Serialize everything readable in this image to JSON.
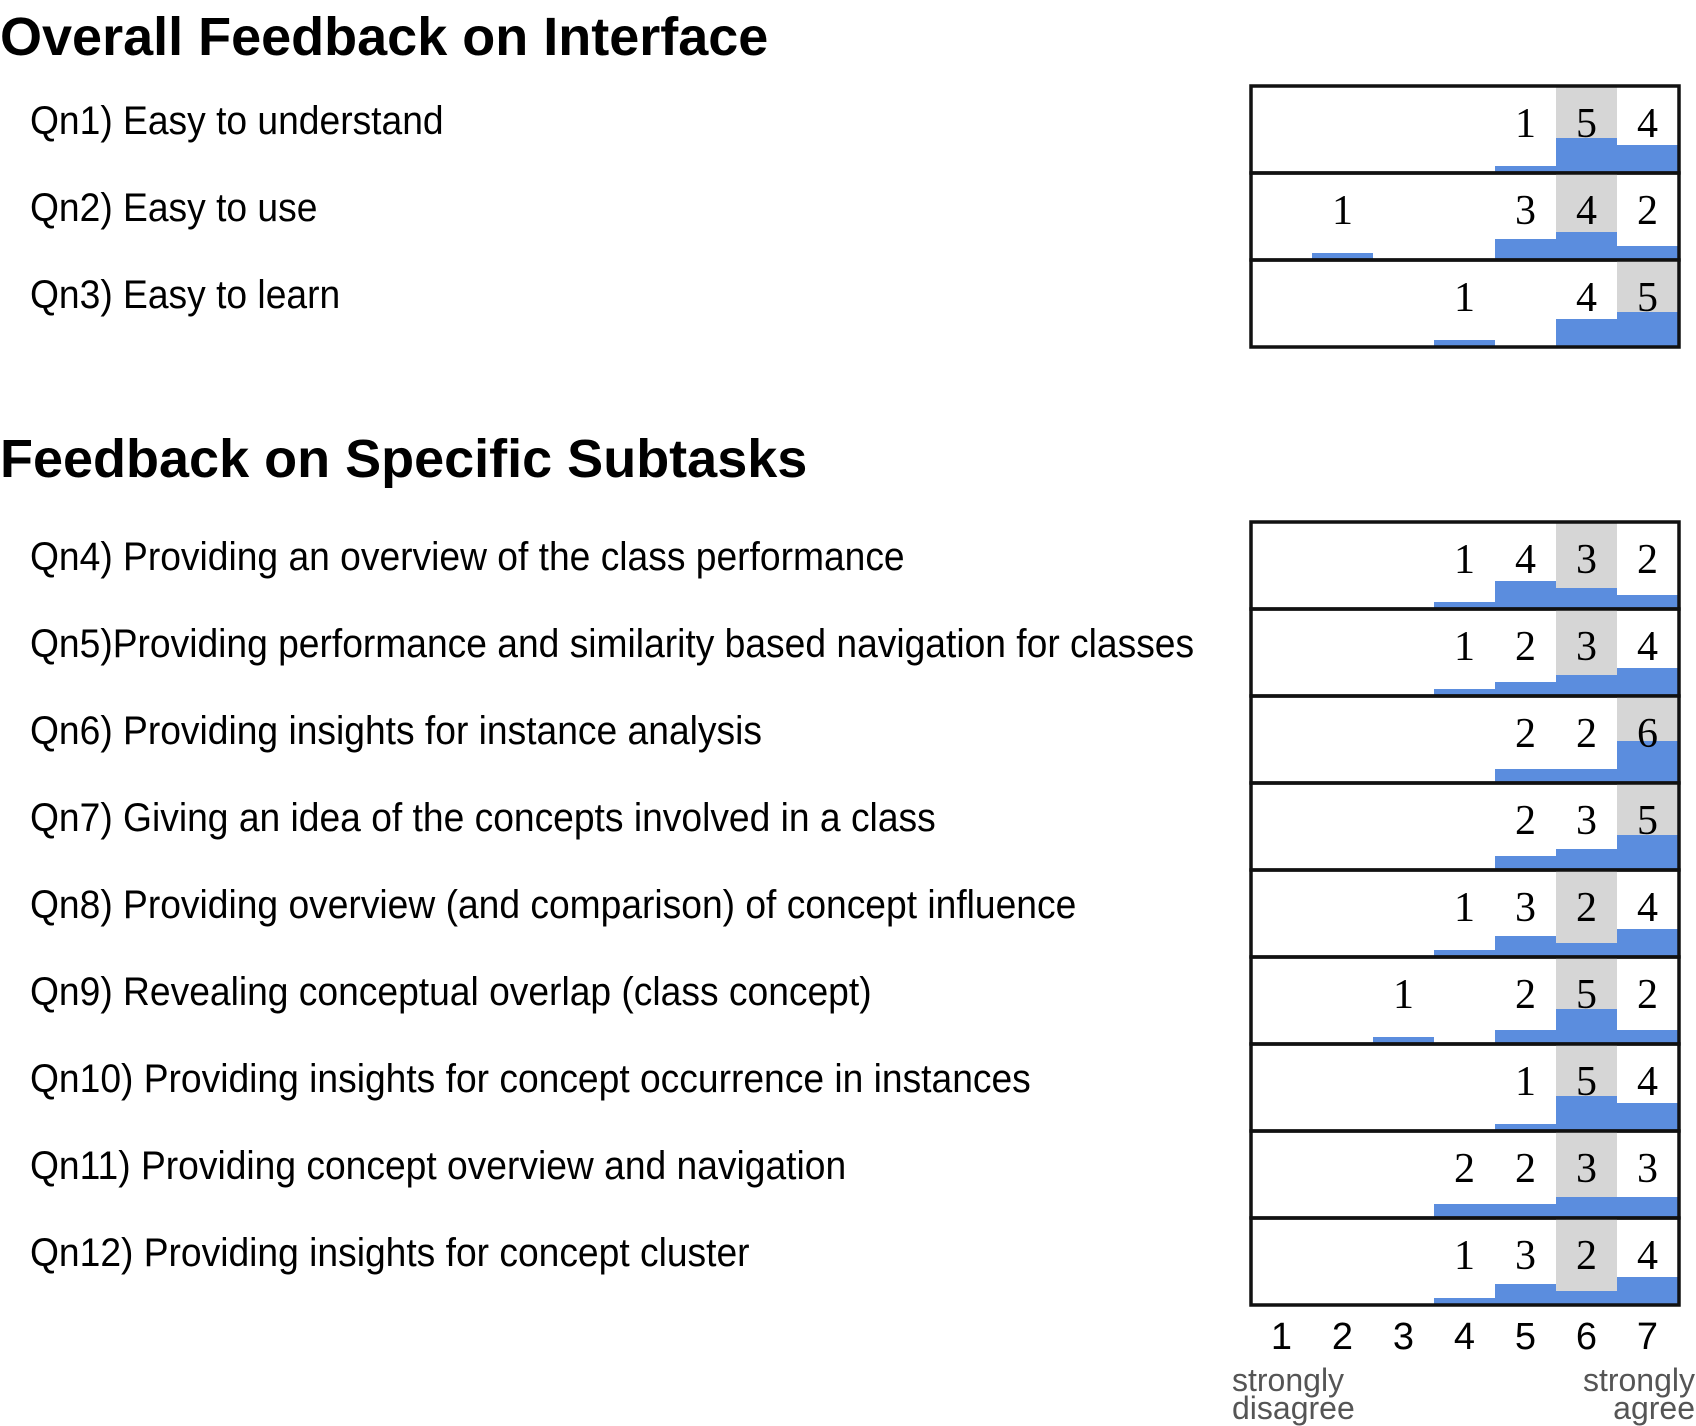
{
  "sections": [
    {
      "title": "Overall Feedback on Interface"
    },
    {
      "title": "Feedback on Specific Subtasks"
    }
  ],
  "colors": {
    "bar": "#5b8dde",
    "median": "#d6d6d6",
    "frame": "#111111"
  },
  "chart_data": {
    "type": "bar",
    "title": "",
    "scale": [
      1,
      2,
      3,
      4,
      5,
      6,
      7
    ],
    "axis_labels": {
      "low": "strongly\ndisagree",
      "high": "strongly\nagree"
    },
    "anchor_low_lines": [
      "strongly",
      "disagree"
    ],
    "anchor_high_lines": [
      "strongly",
      "agree"
    ],
    "ylim": [
      0,
      6
    ],
    "questions": [
      {
        "label": "Qn1) Easy to understand",
        "counts": [
          0,
          0,
          0,
          0,
          1,
          5,
          4
        ],
        "median": 6,
        "section": 0
      },
      {
        "label": "Qn2) Easy to use",
        "counts": [
          0,
          1,
          0,
          0,
          3,
          4,
          2
        ],
        "median": 6,
        "section": 0
      },
      {
        "label": "Qn3) Easy to learn",
        "counts": [
          0,
          0,
          0,
          1,
          0,
          4,
          5
        ],
        "median": 7,
        "section": 0
      },
      {
        "label": "Qn4) Providing an overview of the class performance",
        "counts": [
          0,
          0,
          0,
          1,
          4,
          3,
          2
        ],
        "median": 6,
        "section": 1
      },
      {
        "label": "Qn5)Providing performance and similarity based navigation for classes",
        "counts": [
          0,
          0,
          0,
          1,
          2,
          3,
          4
        ],
        "median": 6,
        "section": 1
      },
      {
        "label": "Qn6) Providing insights for instance analysis",
        "counts": [
          0,
          0,
          0,
          0,
          2,
          2,
          6
        ],
        "median": 7,
        "section": 1
      },
      {
        "label": "Qn7) Giving an idea of the concepts involved in a class",
        "counts": [
          0,
          0,
          0,
          0,
          2,
          3,
          5
        ],
        "median": 7,
        "section": 1
      },
      {
        "label": "Qn8) Providing overview (and comparison) of concept influence",
        "counts": [
          0,
          0,
          0,
          1,
          3,
          2,
          4
        ],
        "median": 6,
        "section": 1
      },
      {
        "label": "Qn9) Revealing conceptual overlap (class concept)",
        "counts": [
          0,
          0,
          1,
          0,
          2,
          5,
          2
        ],
        "median": 6,
        "section": 1
      },
      {
        "label": "Qn10) Providing insights for concept occurrence in instances",
        "counts": [
          0,
          0,
          0,
          0,
          1,
          5,
          4
        ],
        "median": 6,
        "section": 1
      },
      {
        "label": "Qn11) Providing concept overview and navigation",
        "counts": [
          0,
          0,
          0,
          2,
          2,
          3,
          3
        ],
        "median": 6,
        "section": 1
      },
      {
        "label": "Qn12) Providing insights for concept cluster",
        "counts": [
          0,
          0,
          0,
          1,
          3,
          2,
          4
        ],
        "median": 6,
        "section": 1
      }
    ]
  }
}
